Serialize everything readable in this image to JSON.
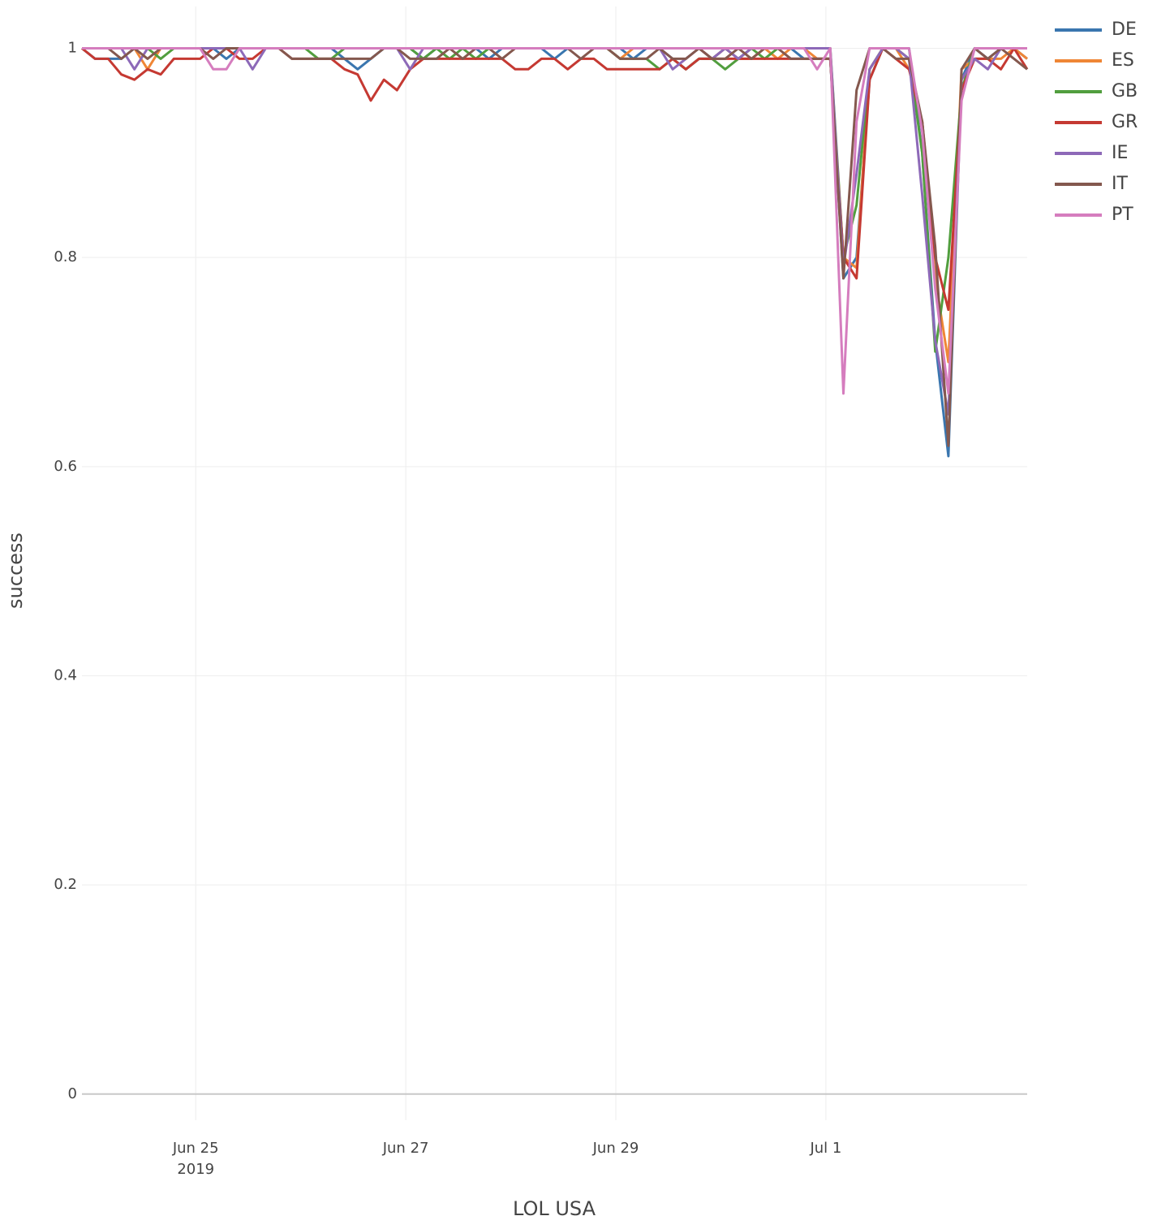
{
  "chart_data": {
    "type": "line",
    "x_label": "LOL USA",
    "y_label": "success",
    "grid": true,
    "legend": "right",
    "x": [
      "2019-06-23 22:00",
      "2019-06-24 01:00",
      "2019-06-24 04:00",
      "2019-06-24 07:00",
      "2019-06-24 10:00",
      "2019-06-24 13:00",
      "2019-06-24 16:00",
      "2019-06-24 19:00",
      "2019-06-24 22:00",
      "2019-06-25 01:00",
      "2019-06-25 04:00",
      "2019-06-25 07:00",
      "2019-06-25 10:00",
      "2019-06-25 13:00",
      "2019-06-25 16:00",
      "2019-06-25 19:00",
      "2019-06-25 22:00",
      "2019-06-26 01:00",
      "2019-06-26 04:00",
      "2019-06-26 07:00",
      "2019-06-26 10:00",
      "2019-06-26 13:00",
      "2019-06-26 16:00",
      "2019-06-26 19:00",
      "2019-06-26 22:00",
      "2019-06-27 01:00",
      "2019-06-27 04:00",
      "2019-06-27 07:00",
      "2019-06-27 10:00",
      "2019-06-27 13:00",
      "2019-06-27 16:00",
      "2019-06-27 19:00",
      "2019-06-27 22:00",
      "2019-06-28 01:00",
      "2019-06-28 04:00",
      "2019-06-28 07:00",
      "2019-06-28 10:00",
      "2019-06-28 13:00",
      "2019-06-28 16:00",
      "2019-06-28 19:00",
      "2019-06-28 22:00",
      "2019-06-29 01:00",
      "2019-06-29 04:00",
      "2019-06-29 07:00",
      "2019-06-29 10:00",
      "2019-06-29 13:00",
      "2019-06-29 16:00",
      "2019-06-29 19:00",
      "2019-06-29 22:00",
      "2019-06-30 01:00",
      "2019-06-30 04:00",
      "2019-06-30 07:00",
      "2019-06-30 10:00",
      "2019-06-30 13:00",
      "2019-06-30 16:00",
      "2019-06-30 19:00",
      "2019-06-30 22:00",
      "2019-07-01 01:00",
      "2019-07-01 04:00",
      "2019-07-01 07:00",
      "2019-07-01 10:00",
      "2019-07-01 13:00",
      "2019-07-01 16:00",
      "2019-07-01 19:00",
      "2019-07-01 22:00",
      "2019-07-02 01:00",
      "2019-07-02 04:00",
      "2019-07-02 07:00",
      "2019-07-02 10:00",
      "2019-07-02 13:00",
      "2019-07-02 16:00",
      "2019-07-02 19:00",
      "2019-07-02 22:00"
    ],
    "xlim": [
      "2019-06-23 22:00",
      "2019-07-02 22:00"
    ],
    "xticks": [
      {
        "value": "2019-06-25",
        "label": "Jun 25\n2019"
      },
      {
        "value": "2019-06-27",
        "label": "Jun 27"
      },
      {
        "value": "2019-06-29",
        "label": "Jun 29"
      },
      {
        "value": "2019-07-01",
        "label": "Jul 1"
      }
    ],
    "ylim": [
      -0.025,
      1.04
    ],
    "yticks": [
      0,
      0.2,
      0.4,
      0.6,
      0.8,
      1
    ],
    "series": [
      {
        "name": "DE",
        "color": "#3a76af",
        "values": [
          1,
          0.99,
          0.99,
          0.99,
          1,
          1,
          1,
          1,
          1,
          1,
          1,
          0.99,
          1,
          1,
          1,
          1,
          1,
          1,
          1,
          1,
          0.99,
          0.98,
          0.99,
          1,
          1,
          1,
          0.99,
          1,
          1,
          1,
          1,
          0.99,
          1,
          1,
          1,
          1,
          0.99,
          1,
          1,
          1,
          1,
          1,
          0.99,
          1,
          1,
          0.99,
          0.98,
          0.99,
          0.99,
          1,
          0.99,
          1,
          1,
          1,
          1,
          0.99,
          0.99,
          0.99,
          0.78,
          0.8,
          0.97,
          1,
          1,
          1,
          0.9,
          0.72,
          0.61,
          0.97,
          1,
          0.99,
          1,
          1,
          0.99
        ]
      },
      {
        "name": "ES",
        "color": "#ef8636",
        "values": [
          1,
          1,
          1,
          1,
          1,
          0.98,
          1,
          1,
          1,
          1,
          1,
          1,
          1,
          1,
          1,
          1,
          1,
          1,
          1,
          1,
          1,
          1,
          1,
          1,
          1,
          1,
          1,
          1,
          1,
          1,
          1,
          1,
          1,
          1,
          1,
          1,
          1,
          1,
          1,
          1,
          1,
          0.99,
          1,
          1,
          1,
          1,
          1,
          1,
          0.99,
          1,
          0.99,
          0.99,
          1,
          0.99,
          1,
          1,
          0.99,
          0.99,
          0.8,
          0.79,
          0.98,
          1,
          1,
          0.98,
          0.93,
          0.78,
          0.7,
          0.98,
          0.99,
          0.99,
          0.99,
          1,
          0.99
        ]
      },
      {
        "name": "GB",
        "color": "#519e3e",
        "values": [
          1,
          1,
          1,
          1,
          1,
          1,
          0.99,
          1,
          1,
          1,
          1,
          1,
          1,
          1,
          1,
          1,
          1,
          1,
          0.99,
          0.99,
          1,
          1,
          1,
          1,
          1,
          1,
          0.99,
          1,
          0.99,
          1,
          0.99,
          1,
          1,
          1,
          1,
          1,
          1,
          1,
          1,
          1,
          1,
          0.99,
          0.99,
          0.99,
          0.98,
          0.99,
          0.98,
          0.99,
          0.99,
          0.98,
          0.99,
          1,
          0.99,
          1,
          1,
          1,
          1,
          1,
          0.8,
          0.85,
          0.98,
          1,
          1,
          0.99,
          0.9,
          0.71,
          0.8,
          0.96,
          1,
          1,
          1,
          1,
          1
        ]
      },
      {
        "name": "GR",
        "color": "#c53932",
        "values": [
          1,
          0.99,
          0.99,
          0.975,
          0.97,
          0.98,
          0.975,
          0.99,
          0.99,
          0.99,
          1,
          1,
          0.99,
          0.99,
          1,
          1,
          0.99,
          0.99,
          0.99,
          0.99,
          0.98,
          0.975,
          0.95,
          0.97,
          0.96,
          0.98,
          0.99,
          0.99,
          0.99,
          0.99,
          0.99,
          0.99,
          0.99,
          0.98,
          0.98,
          0.99,
          0.99,
          0.98,
          0.99,
          0.99,
          0.98,
          0.98,
          0.98,
          0.98,
          0.98,
          0.99,
          0.98,
          0.99,
          0.99,
          0.99,
          0.99,
          0.99,
          0.99,
          0.99,
          0.99,
          0.99,
          0.99,
          0.99,
          0.8,
          0.78,
          0.97,
          1,
          0.99,
          0.98,
          0.93,
          0.8,
          0.75,
          0.96,
          0.99,
          0.99,
          0.98,
          1,
          0.98
        ]
      },
      {
        "name": "IE",
        "color": "#8d69b8",
        "values": [
          1,
          1,
          1,
          1,
          0.98,
          1,
          1,
          1,
          1,
          1,
          1,
          1,
          1,
          0.98,
          1,
          1,
          1,
          1,
          1,
          1,
          1,
          1,
          1,
          1,
          1,
          0.98,
          1,
          1,
          1,
          1,
          1,
          1,
          1,
          1,
          1,
          1,
          1,
          1,
          1,
          1,
          1,
          1,
          1,
          1,
          1,
          0.98,
          0.99,
          1,
          0.99,
          1,
          0.99,
          1,
          1,
          1,
          1,
          1,
          1,
          1,
          0.79,
          0.88,
          0.98,
          1,
          1,
          0.99,
          0.86,
          0.72,
          0.65,
          0.97,
          0.99,
          0.98,
          1,
          1,
          1
        ]
      },
      {
        "name": "IT",
        "color": "#84584e",
        "values": [
          1,
          1,
          1,
          0.99,
          1,
          0.99,
          1,
          1,
          1,
          1,
          0.99,
          1,
          1,
          1,
          1,
          1,
          0.99,
          0.99,
          0.99,
          0.99,
          0.99,
          0.99,
          0.99,
          1,
          1,
          0.99,
          0.99,
          0.99,
          1,
          0.99,
          1,
          1,
          0.99,
          1,
          1,
          1,
          1,
          1,
          0.99,
          1,
          1,
          0.99,
          0.99,
          0.99,
          1,
          0.99,
          0.99,
          1,
          0.99,
          0.99,
          1,
          0.99,
          1,
          1,
          0.99,
          0.99,
          0.99,
          0.99,
          0.78,
          0.96,
          1,
          1,
          0.99,
          0.99,
          0.93,
          0.81,
          0.62,
          0.98,
          1,
          0.99,
          1,
          0.99,
          0.98
        ]
      },
      {
        "name": "PT",
        "color": "#d57dbe",
        "values": [
          1,
          1,
          1,
          1,
          1,
          1,
          1,
          1,
          1,
          1,
          0.98,
          0.98,
          1,
          1,
          1,
          1,
          1,
          1,
          1,
          1,
          1,
          1,
          1,
          1,
          1,
          1,
          1,
          1,
          1,
          1,
          1,
          1,
          1,
          1,
          1,
          1,
          1,
          1,
          1,
          1,
          1,
          1,
          1,
          1,
          1,
          1,
          1,
          1,
          1,
          1,
          1,
          1,
          1,
          1,
          1,
          1,
          0.98,
          1,
          0.67,
          0.93,
          1,
          1,
          1,
          1,
          0.92,
          0.77,
          0.67,
          0.95,
          1,
          1,
          1,
          1,
          1
        ]
      }
    ]
  }
}
